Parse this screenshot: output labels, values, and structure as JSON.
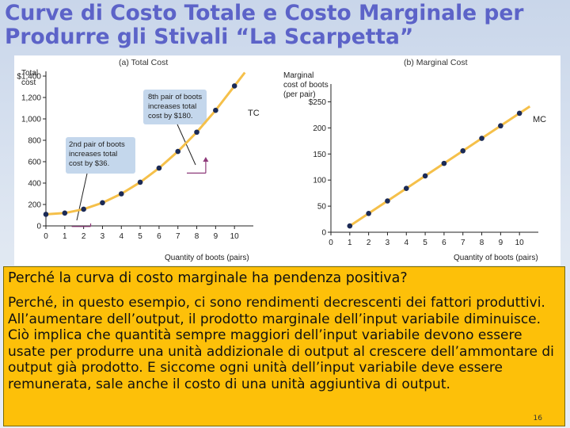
{
  "slide": {
    "title": "Curve di Costo Totale e Costo Marginale per Produrre gli Stivali “La Scarpetta”",
    "question": "Perché la curva di costo marginale ha pendenza positiva?",
    "answer": "Perché, in questo esempio, ci sono rendimenti decrescenti dei fattori produttivi. All’aumentare dell’output, il prodotto marginale dell’input variabile diminuisce. Ciò implica che quantità sempre maggiori dell’input variabile devono essere usate per produrre una unità addizionale di output al crescere dell’ammontare di output già prodotto. E siccome ogni unità dell’input variabile deve essere remunerata, sale anche il costo di una unità aggiuntiva di output.",
    "page_number": "16"
  },
  "colors": {
    "curve": "#f5c04a",
    "marker": "#1b2a55",
    "annotation_box": "#c4d7ec",
    "arrow": "#8e3a7a"
  },
  "chart_data": [
    {
      "type": "line",
      "panel_title": "(a) Total Cost",
      "ylabel": [
        "Total",
        "cost"
      ],
      "xlabel": "Quantity of boots (pairs)",
      "curve_label": "TC",
      "x": [
        0,
        1,
        2,
        3,
        4,
        5,
        6,
        7,
        8,
        9,
        10
      ],
      "series": [
        {
          "values": [
            108,
            120,
            156,
            216,
            300,
            408,
            540,
            696,
            876,
            1080,
            1308
          ]
        }
      ],
      "xticks": [
        "0",
        "1",
        "2",
        "3",
        "4",
        "5",
        "6",
        "7",
        "8",
        "9",
        "10"
      ],
      "yticks": [
        "0",
        "200",
        "400",
        "600",
        "800",
        "1,000",
        "1,200",
        "$1,400"
      ],
      "xlim": [
        0,
        11
      ],
      "ylim": [
        0,
        1400
      ],
      "annotations": [
        "8th pair of boots increases total cost by $180.",
        "2nd pair of boots increases total cost by $36."
      ]
    },
    {
      "type": "line",
      "panel_title": "(b) Marginal Cost",
      "ylabel": [
        "Marginal",
        "cost of boots",
        "(per pair)"
      ],
      "xlabel": "Quantity of boots (pairs)",
      "curve_label": "MC",
      "x": [
        1,
        2,
        3,
        4,
        5,
        6,
        7,
        8,
        9,
        10
      ],
      "series": [
        {
          "values": [
            12,
            36,
            60,
            84,
            108,
            132,
            156,
            180,
            204,
            228
          ]
        }
      ],
      "xticks": [
        "0",
        "1",
        "2",
        "3",
        "4",
        "5",
        "6",
        "7",
        "8",
        "9",
        "10"
      ],
      "yticks": [
        "0",
        "50",
        "100",
        "150",
        "200",
        "$250"
      ],
      "xlim": [
        0,
        11
      ],
      "ylim": [
        0,
        275
      ]
    }
  ]
}
